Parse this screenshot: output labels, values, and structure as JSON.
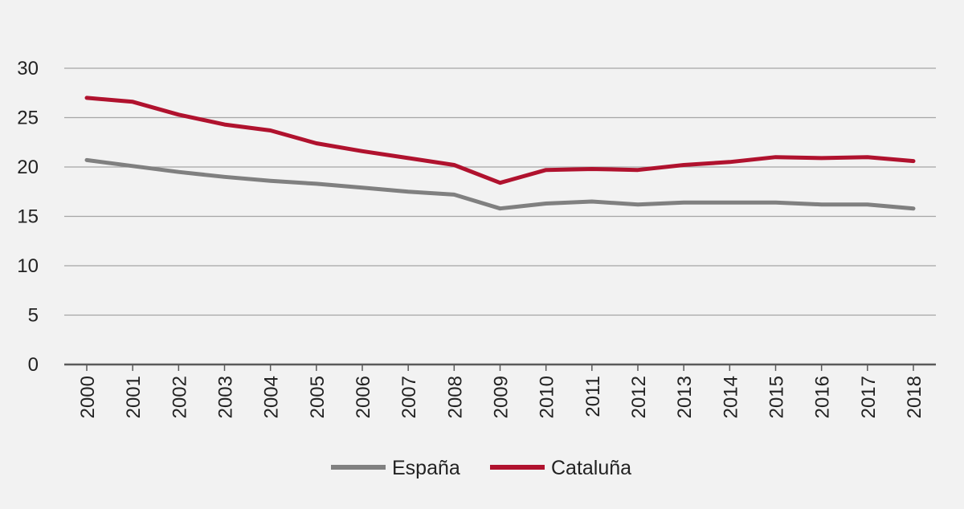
{
  "chart_data": {
    "type": "line",
    "title": "",
    "xlabel": "",
    "ylabel": "",
    "ylim": [
      0,
      30
    ],
    "yticks": [
      0,
      5,
      10,
      15,
      20,
      25,
      30
    ],
    "grid": true,
    "legend_position": "bottom",
    "categories": [
      "2000",
      "2001",
      "2002",
      "2003",
      "2004",
      "2005",
      "2006",
      "2007",
      "2008",
      "2009",
      "2010",
      "2011",
      "2012",
      "2013",
      "2014",
      "2015",
      "2016",
      "2017",
      "2018"
    ],
    "series": [
      {
        "name": "España",
        "color": "#808080",
        "values": [
          20.7,
          20.1,
          19.5,
          19.0,
          18.6,
          18.3,
          17.9,
          17.5,
          17.2,
          15.8,
          16.3,
          16.5,
          16.2,
          16.4,
          16.4,
          16.4,
          16.2,
          16.2,
          15.8
        ]
      },
      {
        "name": "Cataluña",
        "color": "#b0122e",
        "values": [
          27.0,
          26.6,
          25.3,
          24.3,
          23.7,
          22.4,
          21.6,
          20.9,
          20.2,
          18.4,
          19.7,
          19.8,
          19.7,
          20.2,
          20.5,
          21.0,
          20.9,
          21.0,
          20.6
        ]
      }
    ]
  }
}
